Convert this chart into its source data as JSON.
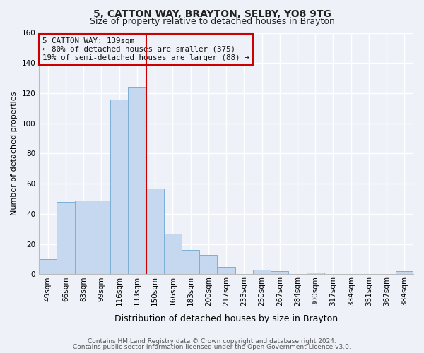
{
  "title": "5, CATTON WAY, BRAYTON, SELBY, YO8 9TG",
  "subtitle": "Size of property relative to detached houses in Brayton",
  "xlabel": "Distribution of detached houses by size in Brayton",
  "ylabel": "Number of detached properties",
  "bar_labels": [
    "49sqm",
    "66sqm",
    "83sqm",
    "99sqm",
    "116sqm",
    "133sqm",
    "150sqm",
    "166sqm",
    "183sqm",
    "200sqm",
    "217sqm",
    "233sqm",
    "250sqm",
    "267sqm",
    "284sqm",
    "300sqm",
    "317sqm",
    "334sqm",
    "351sqm",
    "367sqm",
    "384sqm"
  ],
  "bar_values": [
    10,
    48,
    49,
    49,
    116,
    124,
    57,
    27,
    16,
    13,
    5,
    0,
    3,
    2,
    0,
    1,
    0,
    0,
    0,
    0,
    2
  ],
  "bar_color": "#c5d8ef",
  "bar_edge_color": "#7bafd4",
  "vline_color": "#cc0000",
  "vline_pos": 5.5,
  "ylim": [
    0,
    160
  ],
  "yticks": [
    0,
    20,
    40,
    60,
    80,
    100,
    120,
    140,
    160
  ],
  "annotation_title": "5 CATTON WAY: 139sqm",
  "annotation_line1": "← 80% of detached houses are smaller (375)",
  "annotation_line2": "19% of semi-detached houses are larger (88) →",
  "annotation_box_color": "#cc0000",
  "footer1": "Contains HM Land Registry data © Crown copyright and database right 2024.",
  "footer2": "Contains public sector information licensed under the Open Government Licence v3.0.",
  "background_color": "#eef2f8",
  "grid_color": "#ffffff",
  "title_fontsize": 10,
  "subtitle_fontsize": 9,
  "ylabel_fontsize": 8,
  "xlabel_fontsize": 9,
  "tick_fontsize": 7.5,
  "footer_fontsize": 6.5
}
